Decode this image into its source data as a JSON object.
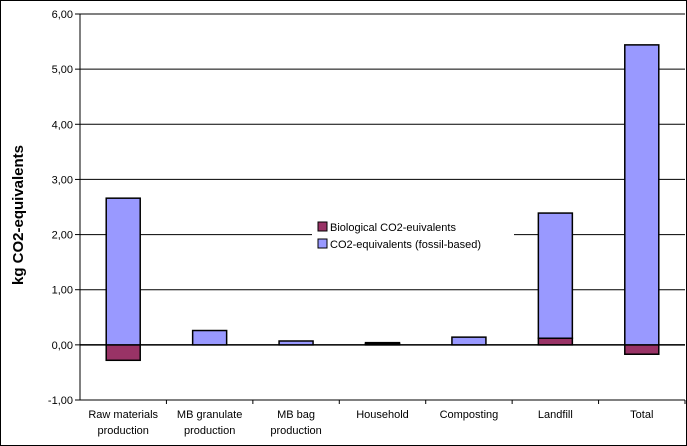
{
  "chart_data": {
    "type": "bar",
    "stacked": true,
    "title": "",
    "xlabel": "",
    "ylabel": "kg CO2-equivalents",
    "ylim": [
      -1,
      6
    ],
    "yticks": [
      "-1,00",
      "0,00",
      "1,00",
      "2,00",
      "3,00",
      "4,00",
      "5,00",
      "6,00"
    ],
    "grid": true,
    "legend_position": "center",
    "categories": [
      [
        "Raw materials",
        "production"
      ],
      [
        "MB granulate",
        "production"
      ],
      [
        "MB bag",
        "production"
      ],
      [
        "Household"
      ],
      [
        "Composting"
      ],
      [
        "Landfill"
      ],
      [
        "Total"
      ]
    ],
    "series": [
      {
        "name": "Biological CO2-euivalents",
        "color": "#993366",
        "values": [
          -0.28,
          0.0,
          0.0,
          0.02,
          0.0,
          0.12,
          -0.17
        ]
      },
      {
        "name": "CO2-equivalents (fossil-based)",
        "color": "#9999ff",
        "values": [
          2.66,
          0.26,
          0.07,
          0.02,
          0.14,
          2.27,
          5.44
        ]
      }
    ]
  }
}
